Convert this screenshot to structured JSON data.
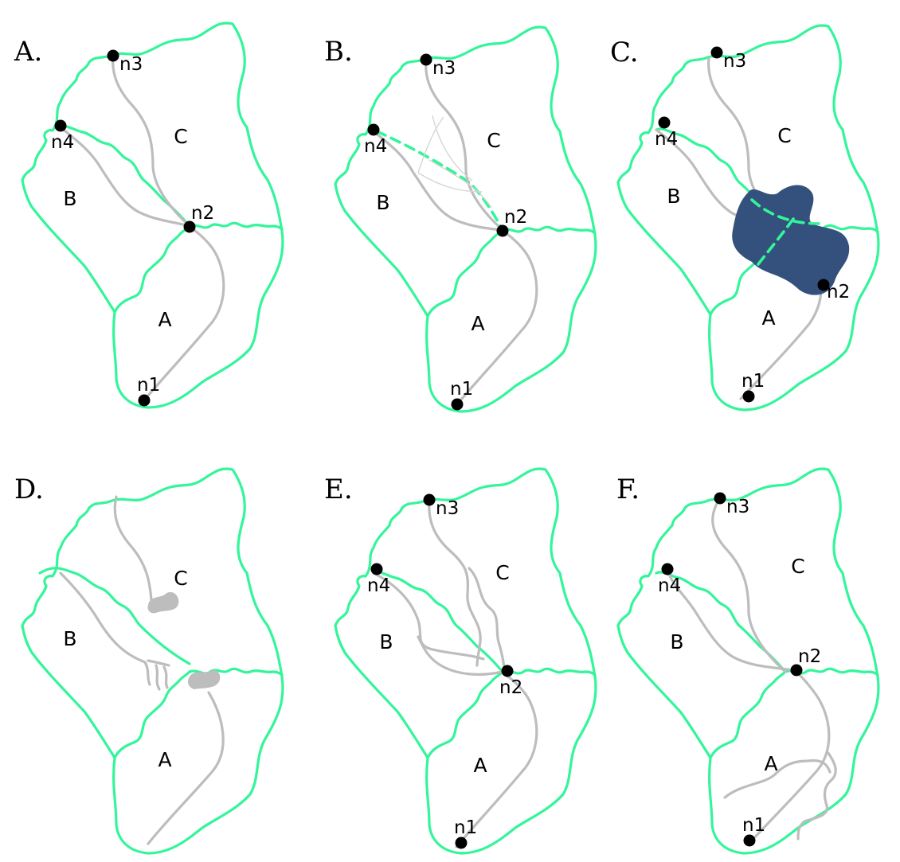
{
  "colors": {
    "boundary": "#33f59a",
    "river": "#bdbdbd",
    "river_faint": "#d6d6d6",
    "blob_dark": "#34517d",
    "blob_grey": "#bdbdbd",
    "node": "#000000"
  },
  "panels": [
    {
      "letter": "A.",
      "regions": [
        "A",
        "B",
        "C"
      ],
      "nodes": [
        "n1",
        "n2",
        "n3",
        "n4"
      ]
    },
    {
      "letter": "B.",
      "regions": [
        "A",
        "B",
        "C"
      ],
      "nodes": [
        "n1",
        "n2",
        "n3",
        "n4"
      ]
    },
    {
      "letter": "C.",
      "regions": [
        "A",
        "B",
        "C"
      ],
      "nodes": [
        "n1",
        "n2",
        "n3",
        "n4"
      ]
    },
    {
      "letter": "D.",
      "regions": [
        "A",
        "B",
        "C"
      ],
      "nodes": []
    },
    {
      "letter": "E.",
      "regions": [
        "A",
        "B",
        "C"
      ],
      "nodes": [
        "n1",
        "n2",
        "n3",
        "n4"
      ]
    },
    {
      "letter": "F.",
      "regions": [
        "A",
        "B",
        "C"
      ],
      "nodes": [
        "n1",
        "n2",
        "n3",
        "n4"
      ]
    }
  ]
}
